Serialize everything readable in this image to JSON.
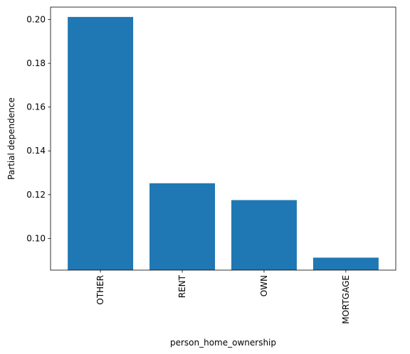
{
  "chart_data": {
    "type": "bar",
    "title": "",
    "xlabel": "person_home_ownership",
    "ylabel": "Partial dependence",
    "categories": [
      "OTHER",
      "RENT",
      "OWN",
      "MORTGAGE"
    ],
    "values": [
      0.2012,
      0.1252,
      0.1175,
      0.0912
    ],
    "ylim": [
      0.0855,
      0.2057
    ],
    "yticks": [
      0.1,
      0.12,
      0.14,
      0.16,
      0.18,
      0.2
    ],
    "ytick_labels": [
      "0.10",
      "0.12",
      "0.14",
      "0.16",
      "0.18",
      "0.20"
    ],
    "bar_color": "#1f77b4",
    "grid": false,
    "xtick_rotation": "vertical"
  }
}
